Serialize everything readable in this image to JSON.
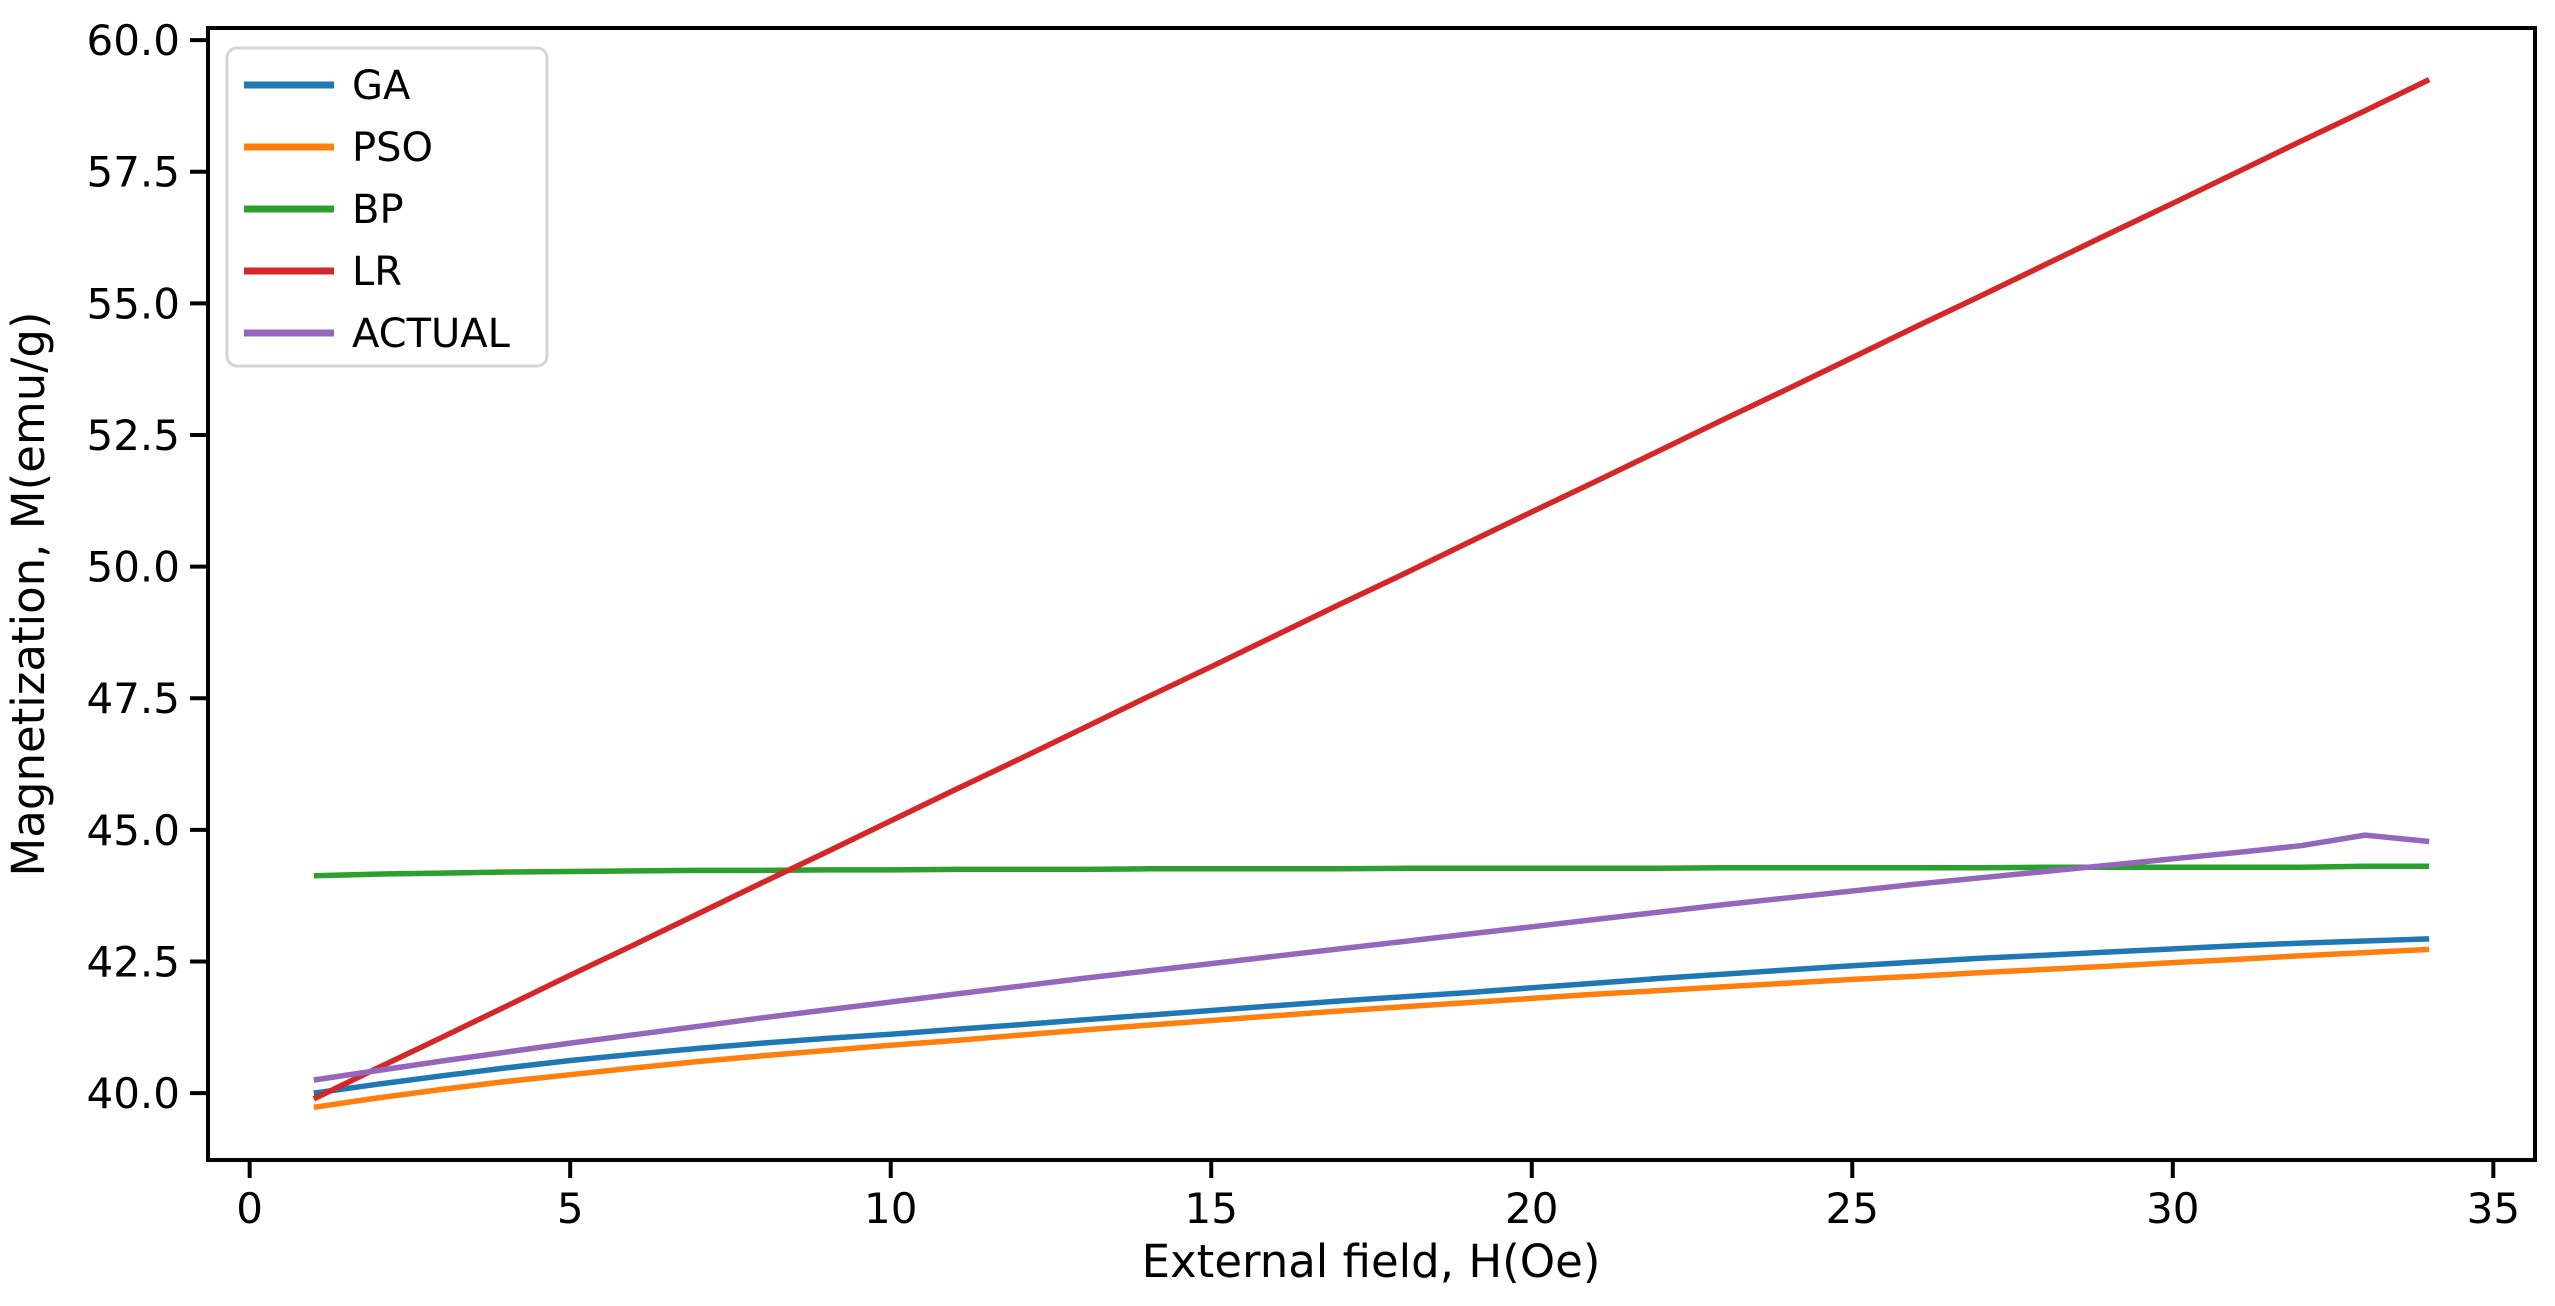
{
  "figure": {
    "background": "#ffffff",
    "text_color": "#000000",
    "spine_color": "#000000",
    "legend_border_color": "#d5d5d5",
    "legend_background": "#ffffff"
  },
  "chart_data": {
    "type": "line",
    "title": "",
    "xlabel": "External field, H(Oe)",
    "ylabel": "Magnetization, M(emu/g)",
    "xlim": [
      -0.65,
      35.65
    ],
    "ylim": [
      38.73,
      60.23
    ],
    "xticks": [
      0,
      5,
      10,
      15,
      20,
      25,
      30,
      35
    ],
    "xtick_labels": [
      "0",
      "5",
      "10",
      "15",
      "20",
      "25",
      "30",
      "35"
    ],
    "yticks": [
      40.0,
      42.5,
      45.0,
      47.5,
      50.0,
      52.5,
      55.0,
      57.5,
      60.0
    ],
    "ytick_labels": [
      "40.0",
      "42.5",
      "45.0",
      "47.5",
      "50.0",
      "52.5",
      "55.0",
      "57.5",
      "60.0"
    ],
    "grid": false,
    "legend": {
      "position": "upper-left",
      "entries": [
        "GA",
        "PSO",
        "BP",
        "LR",
        "ACTUAL"
      ]
    },
    "x": [
      1,
      2,
      3,
      4,
      5,
      6,
      7,
      8,
      9,
      10,
      11,
      12,
      13,
      14,
      15,
      16,
      17,
      18,
      19,
      20,
      21,
      22,
      23,
      24,
      25,
      26,
      27,
      28,
      29,
      30,
      31,
      32,
      33,
      34
    ],
    "series": [
      {
        "name": "GA",
        "color": "#1f77b4",
        "values": [
          40.0,
          40.17,
          40.33,
          40.48,
          40.62,
          40.74,
          40.85,
          40.95,
          41.04,
          41.12,
          41.21,
          41.3,
          41.39,
          41.48,
          41.57,
          41.66,
          41.75,
          41.83,
          41.91,
          42.0,
          42.09,
          42.18,
          42.26,
          42.34,
          42.42,
          42.49,
          42.56,
          42.62,
          42.68,
          42.74,
          42.8,
          42.85,
          42.89,
          42.93
        ]
      },
      {
        "name": "PSO",
        "color": "#ff7f0e",
        "values": [
          39.73,
          39.91,
          40.07,
          40.22,
          40.35,
          40.48,
          40.6,
          40.71,
          40.81,
          40.91,
          41.0,
          41.1,
          41.2,
          41.29,
          41.38,
          41.47,
          41.56,
          41.64,
          41.72,
          41.8,
          41.88,
          41.95,
          42.02,
          42.09,
          42.16,
          42.22,
          42.29,
          42.35,
          42.41,
          42.48,
          42.54,
          42.61,
          42.67,
          42.73
        ]
      },
      {
        "name": "BP",
        "color": "#2ca02c",
        "values": [
          44.13,
          44.16,
          44.18,
          44.2,
          44.21,
          44.22,
          44.23,
          44.23,
          44.24,
          44.24,
          44.25,
          44.25,
          44.25,
          44.26,
          44.26,
          44.26,
          44.26,
          44.27,
          44.27,
          44.27,
          44.27,
          44.27,
          44.28,
          44.28,
          44.28,
          44.28,
          44.28,
          44.29,
          44.29,
          44.29,
          44.29,
          44.29,
          44.31,
          44.31
        ]
      },
      {
        "name": "LR",
        "color": "#d62728",
        "values": [
          39.89,
          40.48,
          41.06,
          41.65,
          42.24,
          42.82,
          43.41,
          44.0,
          44.58,
          45.17,
          45.76,
          46.34,
          46.93,
          47.52,
          48.1,
          48.69,
          49.28,
          49.86,
          50.45,
          51.04,
          51.62,
          52.21,
          52.8,
          53.38,
          53.97,
          54.56,
          55.14,
          55.73,
          56.32,
          56.9,
          57.49,
          58.08,
          58.66,
          59.25
        ]
      },
      {
        "name": "ACTUAL",
        "color": "#9467bd",
        "values": [
          40.25,
          40.43,
          40.61,
          40.78,
          40.95,
          41.11,
          41.27,
          41.43,
          41.58,
          41.73,
          41.88,
          42.03,
          42.18,
          42.32,
          42.46,
          42.6,
          42.74,
          42.88,
          43.02,
          43.16,
          43.3,
          43.44,
          43.58,
          43.71,
          43.84,
          43.97,
          44.09,
          44.21,
          44.33,
          44.45,
          44.57,
          44.7,
          44.9,
          44.78
        ]
      }
    ]
  }
}
